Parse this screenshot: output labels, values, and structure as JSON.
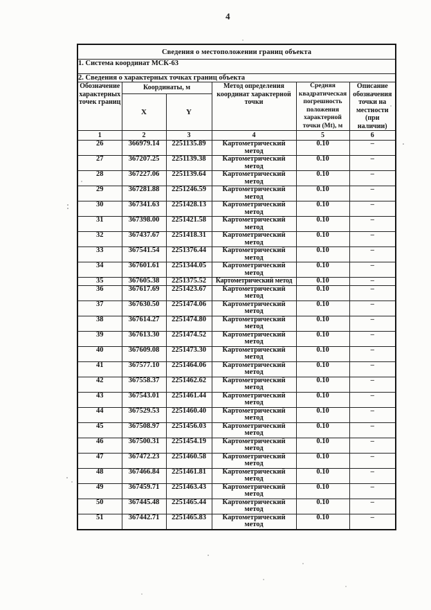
{
  "page": {
    "number": "4"
  },
  "table": {
    "title": "Сведения о местоположении границ объекта",
    "section1": "1. Система координат МСК-63",
    "section2": "2. Сведения о характерных точках границ объекта",
    "headers": {
      "designation": "Обозначение\nхарактерных\nточек границ",
      "coordinates": "Координаты, м",
      "x": "X",
      "y": "Y",
      "method": "Метод определения\nкоординат характерной\nточки",
      "error": "Средняя\nквадратическая\nпогрешность\nположения\nхарактерной\nточки (Mt), м",
      "description": "Описание\nобозначения\nточки на\nместности\n(при\nналичии)"
    },
    "column_numbers": [
      "1",
      "2",
      "3",
      "4",
      "5",
      "6"
    ],
    "rows": [
      {
        "n": "26",
        "x": "366979.14",
        "y": "2251135.89",
        "method": "Картометрический метод",
        "mt": "0.10",
        "desc": "–"
      },
      {
        "n": "27",
        "x": "367207.25",
        "y": "2251139.38",
        "method": "Картометрический метод",
        "mt": "0.10",
        "desc": "–"
      },
      {
        "n": "28",
        "x": "367227.06",
        "y": "2251139.64",
        "method": "Картометрический метод",
        "mt": "0.10",
        "desc": "–"
      },
      {
        "n": "29",
        "x": "367281.88",
        "y": "2251246.59",
        "method": "Картометрический метод",
        "mt": "0.10",
        "desc": "–"
      },
      {
        "n": "30",
        "x": "367341.63",
        "y": "2251428.13",
        "method": "Картометрический метод",
        "mt": "0.10",
        "desc": "–"
      },
      {
        "n": "31",
        "x": "367398.00",
        "y": "2251421.58",
        "method": "Картометрический метод",
        "mt": "0.10",
        "desc": "–"
      },
      {
        "n": "32",
        "x": "367437.67",
        "y": "2251418.31",
        "method": "Картометрический метод",
        "mt": "0.10",
        "desc": "–"
      },
      {
        "n": "33",
        "x": "367541.54",
        "y": "2251376.44",
        "method": "Картометрический метод",
        "mt": "0.10",
        "desc": "–"
      },
      {
        "n": "34",
        "x": "367601.61",
        "y": "2251344.05",
        "method": "Картометрический метод",
        "mt": "0.10",
        "desc": "–"
      },
      {
        "n": "35",
        "x": "367605.38",
        "y": "2251375.52",
        "method": "Картометрический метод",
        "mt": "0.10",
        "desc": "–",
        "oneline": true
      },
      {
        "n": "36",
        "x": "367617.69",
        "y": "2251423.67",
        "method": "Картометрический метод",
        "mt": "0.10",
        "desc": "–"
      },
      {
        "n": "37",
        "x": "367630.50",
        "y": "2251474.06",
        "method": "Картометрический метод",
        "mt": "0.10",
        "desc": "–"
      },
      {
        "n": "38",
        "x": "367614.27",
        "y": "2251474.80",
        "method": "Картометрический метод",
        "mt": "0.10",
        "desc": "–"
      },
      {
        "n": "39",
        "x": "367613.30",
        "y": "2251474.52",
        "method": "Картометрический метод",
        "mt": "0.10",
        "desc": "–"
      },
      {
        "n": "40",
        "x": "367609.08",
        "y": "2251473.30",
        "method": "Картометрический метод",
        "mt": "0.10",
        "desc": "–"
      },
      {
        "n": "41",
        "x": "367577.10",
        "y": "2251464.06",
        "method": "Картометрический метод",
        "mt": "0.10",
        "desc": "–"
      },
      {
        "n": "42",
        "x": "367558.37",
        "y": "2251462.62",
        "method": "Картометрический метод",
        "mt": "0.10",
        "desc": "–"
      },
      {
        "n": "43",
        "x": "367543.01",
        "y": "2251461.44",
        "method": "Картометрический метод",
        "mt": "0.10",
        "desc": "–"
      },
      {
        "n": "44",
        "x": "367529.53",
        "y": "2251460.40",
        "method": "Картометрический метод",
        "mt": "0.10",
        "desc": "–"
      },
      {
        "n": "45",
        "x": "367508.97",
        "y": "2251456.03",
        "method": "Картометрический метод",
        "mt": "0.10",
        "desc": "–"
      },
      {
        "n": "46",
        "x": "367500.31",
        "y": "2251454.19",
        "method": "Картометрический метод",
        "mt": "0.10",
        "desc": "–"
      },
      {
        "n": "47",
        "x": "367472.23",
        "y": "2251460.58",
        "method": "Картометрический метод",
        "mt": "0.10",
        "desc": "–"
      },
      {
        "n": "48",
        "x": "367466.84",
        "y": "2251461.81",
        "method": "Картометрический метод",
        "mt": "0.10",
        "desc": "–"
      },
      {
        "n": "49",
        "x": "367459.71",
        "y": "2251463.43",
        "method": "Картометрический метод",
        "mt": "0.10",
        "desc": "–"
      },
      {
        "n": "50",
        "x": "367445.48",
        "y": "2251465.44",
        "method": "Картометрический метод",
        "mt": "0.10",
        "desc": "–"
      },
      {
        "n": "51",
        "x": "367442.71",
        "y": "2251465.83",
        "method": "Картометрический метод",
        "mt": "0.10",
        "desc": "–"
      }
    ]
  }
}
